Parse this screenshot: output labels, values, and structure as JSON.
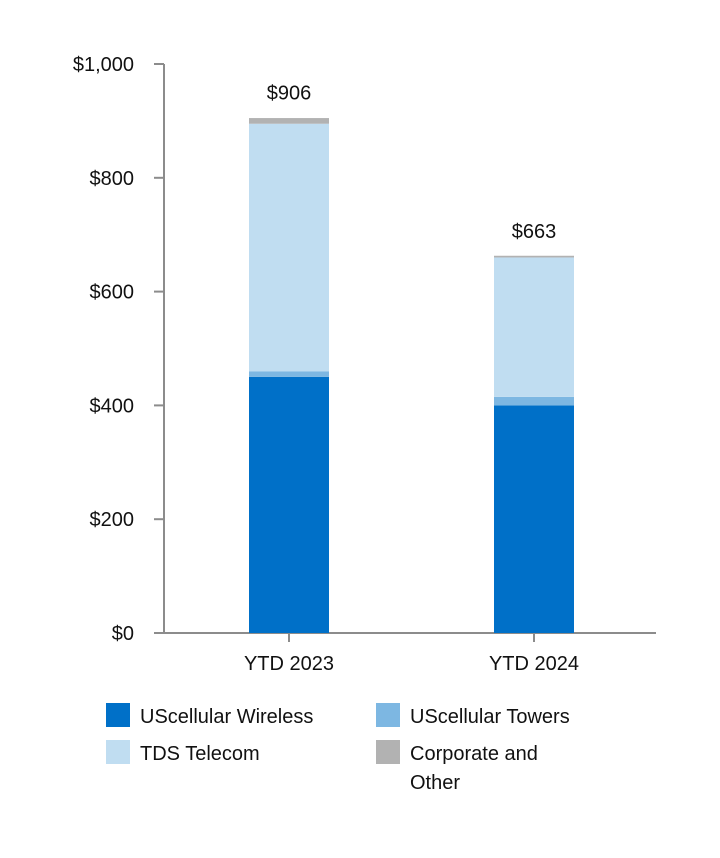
{
  "chart_data": {
    "type": "bar",
    "stacked": true,
    "title": "",
    "xlabel": "",
    "ylabel": "",
    "ylim": [
      0,
      1000
    ],
    "yticks": [
      0,
      200,
      400,
      600,
      800,
      1000
    ],
    "ytick_labels": [
      "$0",
      "$200",
      "$400",
      "$600",
      "$800",
      "$1,000"
    ],
    "categories": [
      "YTD 2023",
      "YTD 2024"
    ],
    "totals": [
      906,
      663
    ],
    "total_labels": [
      "$906",
      "$663"
    ],
    "series": [
      {
        "name": "UScellular Wireless",
        "color": "#0070C8",
        "values": [
          450,
          400
        ]
      },
      {
        "name": "UScellular Towers",
        "color": "#7DB7E2",
        "values": [
          10,
          15
        ]
      },
      {
        "name": "TDS Telecom",
        "color": "#C0DDF1",
        "values": [
          435,
          245
        ]
      },
      {
        "name": "Corporate and Other",
        "color": "#B2B2B2",
        "values": [
          10,
          3
        ]
      }
    ],
    "legend": {
      "placement": "bottom",
      "entries": [
        {
          "label_lines": [
            "UScellular Wireless"
          ]
        },
        {
          "label_lines": [
            "UScellular Towers"
          ]
        },
        {
          "label_lines": [
            "TDS Telecom"
          ]
        },
        {
          "label_lines": [
            "Corporate and",
            "Other"
          ]
        }
      ]
    },
    "grid": false
  },
  "colors": {
    "axis": "#8C8C8C",
    "text": "#111111"
  }
}
